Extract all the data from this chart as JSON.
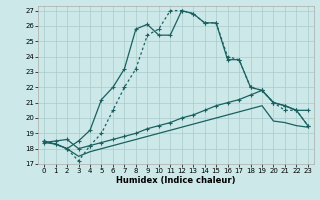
{
  "xlabel": "Humidex (Indice chaleur)",
  "bg_color": "#cce8e8",
  "grid_color": "#aacccc",
  "line_color": "#1a6060",
  "xlim": [
    -0.5,
    23.5
  ],
  "ylim": [
    17,
    27.3
  ],
  "xticks": [
    0,
    1,
    2,
    3,
    4,
    5,
    6,
    7,
    8,
    9,
    10,
    11,
    12,
    13,
    14,
    15,
    16,
    17,
    18,
    19,
    20,
    21,
    22,
    23
  ],
  "yticks": [
    17,
    18,
    19,
    20,
    21,
    22,
    23,
    24,
    25,
    26,
    27
  ],
  "line1_x": [
    0,
    1,
    2,
    3,
    4,
    5,
    6,
    7,
    8,
    9,
    10,
    11,
    12,
    13,
    14,
    15,
    16,
    17,
    18,
    19,
    20,
    21,
    22,
    23
  ],
  "line1_y": [
    18.5,
    18.3,
    18.0,
    18.5,
    19.2,
    21.2,
    22.0,
    23.2,
    25.8,
    26.1,
    25.4,
    25.4,
    27.0,
    26.8,
    26.2,
    26.2,
    23.8,
    23.8,
    22.0,
    21.8,
    21.0,
    20.8,
    20.5,
    19.5
  ],
  "line2_x": [
    0,
    1,
    2,
    3,
    4,
    5,
    6,
    7,
    8,
    9,
    10,
    11,
    12,
    13,
    14,
    15,
    16,
    17,
    18,
    19,
    20,
    21,
    22,
    23
  ],
  "line2_y": [
    18.5,
    18.3,
    18.0,
    17.2,
    18.2,
    19.0,
    20.5,
    22.0,
    23.2,
    25.4,
    25.8,
    27.0,
    27.0,
    26.8,
    26.2,
    26.2,
    24.0,
    23.8,
    22.0,
    21.8,
    21.0,
    20.5,
    20.5,
    19.5
  ],
  "line3_x": [
    0,
    1,
    2,
    3,
    4,
    5,
    6,
    7,
    8,
    9,
    10,
    11,
    12,
    13,
    14,
    15,
    16,
    17,
    18,
    19,
    20,
    21,
    22,
    23
  ],
  "line3_y": [
    18.4,
    18.5,
    18.6,
    18.0,
    18.2,
    18.4,
    18.6,
    18.8,
    19.0,
    19.3,
    19.5,
    19.7,
    20.0,
    20.2,
    20.5,
    20.8,
    21.0,
    21.2,
    21.5,
    21.8,
    21.0,
    20.8,
    20.5,
    20.5
  ],
  "line4_x": [
    0,
    1,
    2,
    3,
    4,
    5,
    6,
    7,
    8,
    9,
    10,
    11,
    12,
    13,
    14,
    15,
    16,
    17,
    18,
    19,
    20,
    21,
    22,
    23
  ],
  "line4_y": [
    18.4,
    18.3,
    18.0,
    17.5,
    17.8,
    18.0,
    18.2,
    18.4,
    18.6,
    18.8,
    19.0,
    19.2,
    19.4,
    19.6,
    19.8,
    20.0,
    20.2,
    20.4,
    20.6,
    20.8,
    19.8,
    19.7,
    19.5,
    19.4
  ]
}
